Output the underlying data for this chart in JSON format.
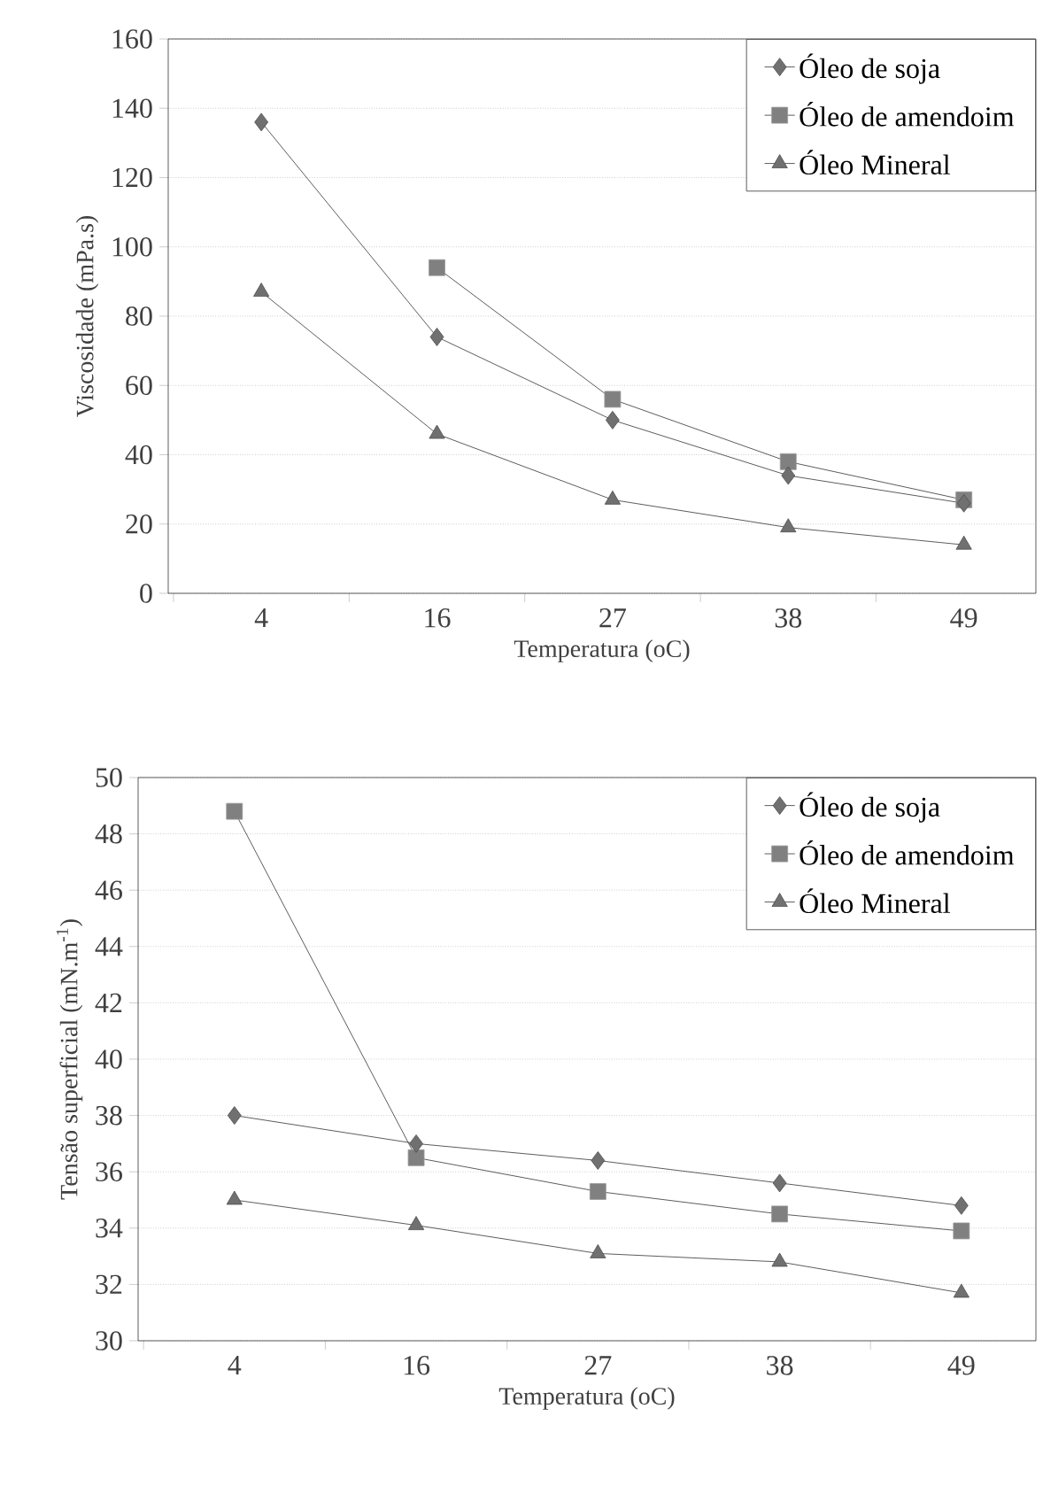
{
  "chart_data": [
    {
      "type": "line",
      "xlabel": "Temperatura (oC)",
      "ylabel": "Viscosidade (mPa.s)",
      "categories": [
        "4",
        "16",
        "27",
        "38",
        "49"
      ],
      "ylim": [
        0,
        160
      ],
      "yticks": [
        0,
        20,
        40,
        60,
        80,
        100,
        120,
        140,
        160
      ],
      "grid": "y",
      "legend": "top right",
      "series": [
        {
          "name": "Óleo de soja",
          "color": "#707070",
          "marker": "diamond",
          "values": [
            136,
            74,
            50,
            34,
            26
          ]
        },
        {
          "name": "Óleo de amendoim",
          "color": "#808080",
          "marker": "square",
          "values": [
            null,
            94,
            56,
            38,
            27
          ]
        },
        {
          "name": "Óleo Mineral",
          "color": "#707070",
          "marker": "triangle",
          "values": [
            87,
            46,
            27,
            19,
            14
          ]
        }
      ]
    },
    {
      "type": "line",
      "xlabel": "Temperatura (oC)",
      "ylabel": "Tensão superficial (mN.m$^{-1}$)",
      "categories": [
        "4",
        "16",
        "27",
        "38",
        "49"
      ],
      "ylim": [
        30,
        50
      ],
      "yticks": [
        30,
        32,
        34,
        36,
        38,
        40,
        42,
        44,
        46,
        48,
        50
      ],
      "grid": "y",
      "legend": "top right",
      "series": [
        {
          "name": "Óleo de soja",
          "color": "#707070",
          "marker": "diamond",
          "values": [
            38,
            37,
            36.4,
            35.6,
            34.8
          ]
        },
        {
          "name": "Óleo de amendoim",
          "color": "#808080",
          "marker": "square",
          "values": [
            48.8,
            36.5,
            35.3,
            34.5,
            33.9
          ]
        },
        {
          "name": "Óleo Mineral",
          "color": "#707070",
          "marker": "triangle",
          "values": [
            35,
            34.1,
            33.1,
            32.8,
            31.7
          ]
        }
      ]
    }
  ]
}
